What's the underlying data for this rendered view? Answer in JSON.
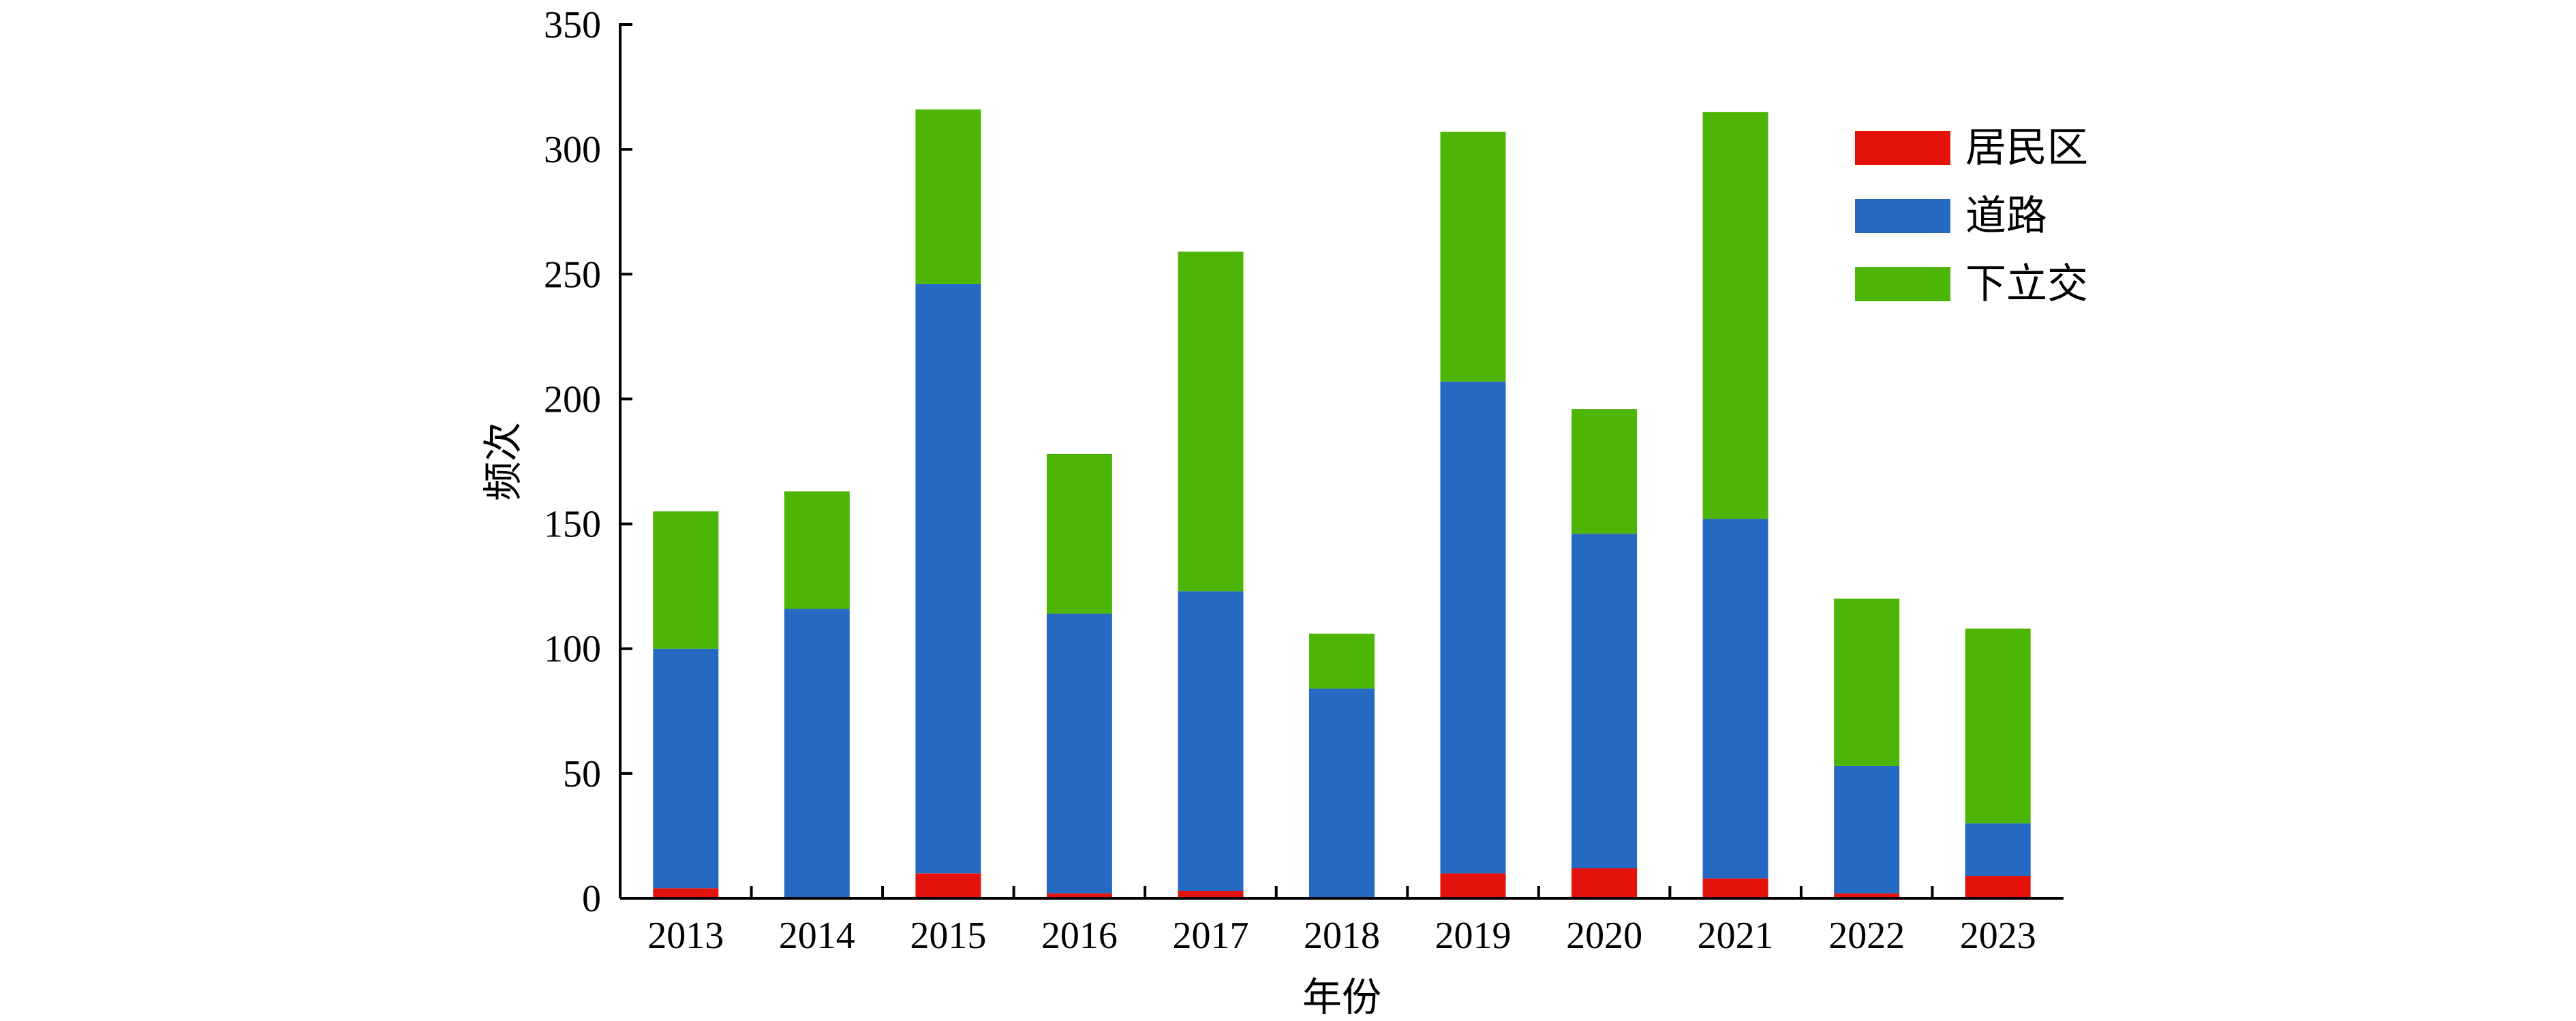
{
  "chart_data": {
    "type": "bar",
    "stacked": true,
    "title": "",
    "xlabel": "年份",
    "ylabel": "频次",
    "ylim": [
      0,
      350
    ],
    "yticks": [
      0,
      50,
      100,
      150,
      200,
      250,
      300,
      350
    ],
    "categories": [
      "2013",
      "2014",
      "2015",
      "2016",
      "2017",
      "2018",
      "2019",
      "2020",
      "2021",
      "2022",
      "2023"
    ],
    "series": [
      {
        "name": "居民区",
        "color": "#e3120b",
        "values": [
          4,
          0,
          10,
          2,
          3,
          0,
          10,
          12,
          8,
          2,
          9
        ]
      },
      {
        "name": "道路",
        "color": "#2669c3",
        "values": [
          96,
          116,
          236,
          112,
          120,
          84,
          197,
          134,
          144,
          51,
          21
        ]
      },
      {
        "name": "下立交",
        "color": "#4db506",
        "values": [
          55,
          47,
          70,
          64,
          136,
          22,
          100,
          50,
          163,
          67,
          78
        ]
      }
    ],
    "legend_position": "top-right",
    "grid": false
  }
}
